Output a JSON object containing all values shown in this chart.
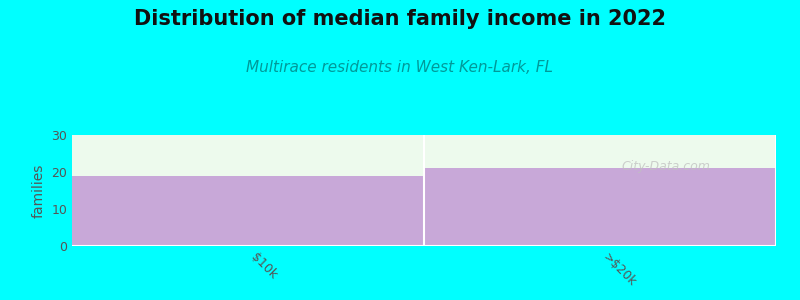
{
  "title": "Distribution of median family income in 2022",
  "subtitle": "Multirace residents in West Ken-Lark, FL",
  "ylabel": "families",
  "categories": [
    "$10k",
    ">$20k"
  ],
  "values": [
    19,
    21
  ],
  "ylim": [
    0,
    30
  ],
  "yticks": [
    0,
    10,
    20,
    30
  ],
  "bar_color": "#C8A8D8",
  "fill_color": "#EDFAED",
  "bg_color": "#00FFFF",
  "plot_bg_color": "#F0FBF0",
  "title_fontsize": 15,
  "title_fontweight": "bold",
  "subtitle_fontsize": 11,
  "subtitle_color": "#009999",
  "ylabel_color": "#555555",
  "tick_color": "#555555",
  "watermark": "City-Data.com",
  "watermark_color": "#C0C0C0",
  "separator_color": "#FFFFFF",
  "bottom_line_color": "#FFFFFF"
}
